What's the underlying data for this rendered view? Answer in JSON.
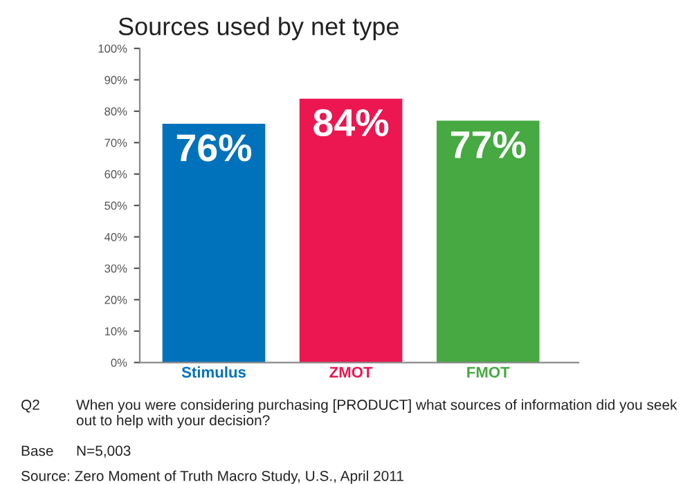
{
  "chart_data": {
    "type": "bar",
    "title": "Sources used by net type",
    "categories": [
      "Stimulus",
      "ZMOT",
      "FMOT"
    ],
    "values": [
      76,
      84,
      77
    ],
    "colors": [
      "#0072bc",
      "#ec1651",
      "#46a942"
    ],
    "value_labels": [
      "76%",
      "84%",
      "77%"
    ],
    "ylim": [
      0,
      100
    ],
    "yticks": [
      {
        "value": 0,
        "label": "0%"
      },
      {
        "value": 10,
        "label": "10%"
      },
      {
        "value": 20,
        "label": "20%"
      },
      {
        "value": 30,
        "label": "30%"
      },
      {
        "value": 40,
        "label": "40%"
      },
      {
        "value": 50,
        "label": "50%"
      },
      {
        "value": 60,
        "label": "60%"
      },
      {
        "value": 70,
        "label": "70%"
      },
      {
        "value": 80,
        "label": "80%"
      },
      {
        "value": 90,
        "label": "90%"
      },
      {
        "value": 100,
        "label": "100%"
      }
    ],
    "grid": false,
    "legend": false,
    "annotations": [
      "Q2",
      "When you were considering purchasing [PRODUCT] what sources of information did you seek out to help with your decision?",
      "Base",
      "N=5,003",
      "Source: Zero Moment of Truth Macro Study, U.S., April 2011"
    ]
  }
}
